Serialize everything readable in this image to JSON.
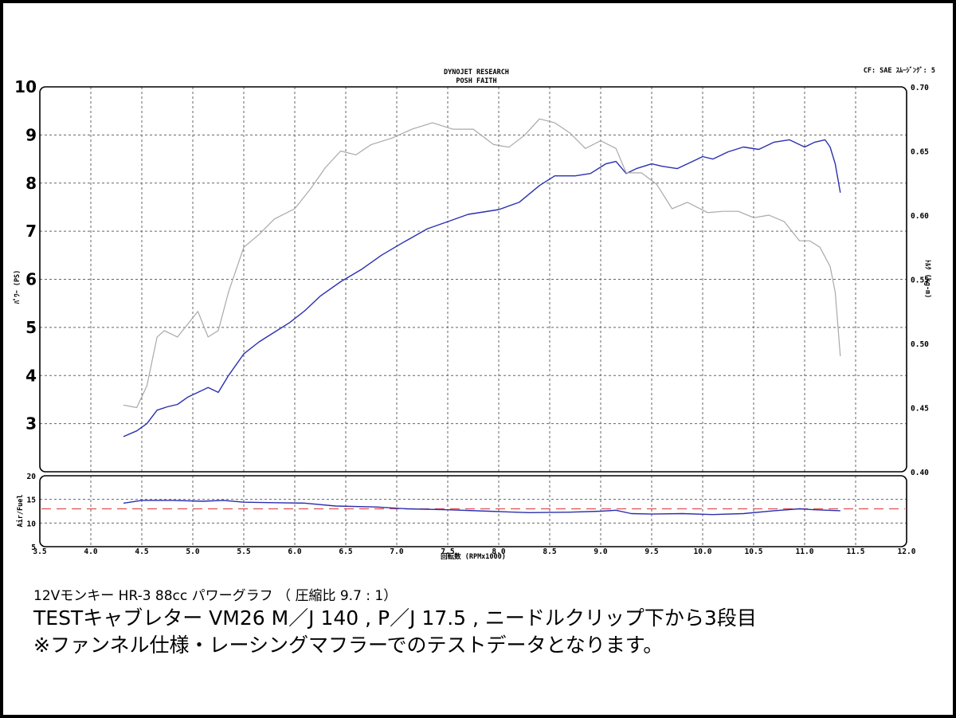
{
  "header": {
    "title_line1": "DYNOJET  RESEARCH",
    "title_line2": "POSH FAITH",
    "cf_label": "CF: SAE  ｽﾑｰｼﾞﾝｸﾞ: 5"
  },
  "chart_data": [
    {
      "type": "line",
      "ylabel_left": "ﾊﾟﾜｰ (PS)",
      "ylabel_right": "ﾄﾙｸ (kg-m)",
      "xlim": [
        3.5,
        12.0
      ],
      "ylim_left": [
        2,
        10
      ],
      "ylim_right": [
        0.4,
        0.7
      ],
      "x_ticks": [
        "3.5",
        "4.0",
        "4.5",
        "5.0",
        "5.5",
        "6.0",
        "6.5",
        "7.0",
        "7.5",
        "8.0",
        "8.5",
        "9.0",
        "9.5",
        "10.0",
        "10.5",
        "11.0",
        "11.5",
        "12.0"
      ],
      "y_ticks_left": [
        "10",
        "9",
        "8",
        "7",
        "6",
        "5",
        "4",
        "3"
      ],
      "y_ticks_right": [
        "0.70",
        "0.65",
        "0.60",
        "0.55",
        "0.50",
        "0.45",
        "0.40"
      ],
      "grid": true,
      "colors": {
        "power": "#2b2fb0",
        "torque": "#a9a9a9",
        "grid": "#666666"
      },
      "series": [
        {
          "name": "",
          "key": "power",
          "axis": "left",
          "x": [
            4.32,
            4.45,
            4.55,
            4.65,
            4.75,
            4.85,
            4.95,
            5.05,
            5.15,
            5.25,
            5.35,
            5.5,
            5.65,
            5.8,
            5.95,
            6.1,
            6.25,
            6.45,
            6.65,
            6.85,
            7.05,
            7.3,
            7.5,
            7.7,
            7.85,
            8.0,
            8.2,
            8.4,
            8.55,
            8.75,
            8.9,
            9.05,
            9.15,
            9.25,
            9.35,
            9.5,
            9.6,
            9.75,
            9.9,
            10.0,
            10.1,
            10.25,
            10.4,
            10.55,
            10.7,
            10.85,
            11.0,
            11.1,
            11.2,
            11.25,
            11.3,
            11.35
          ],
          "y": [
            2.73,
            2.85,
            3.0,
            3.28,
            3.35,
            3.4,
            3.55,
            3.65,
            3.75,
            3.65,
            4.0,
            4.45,
            4.7,
            4.9,
            5.1,
            5.35,
            5.65,
            5.95,
            6.2,
            6.5,
            6.75,
            7.05,
            7.2,
            7.35,
            7.4,
            7.45,
            7.6,
            7.95,
            8.15,
            8.15,
            8.2,
            8.4,
            8.45,
            8.2,
            8.3,
            8.4,
            8.35,
            8.3,
            8.45,
            8.55,
            8.5,
            8.65,
            8.75,
            8.7,
            8.85,
            8.9,
            8.75,
            8.85,
            8.9,
            8.75,
            8.4,
            7.8
          ]
        },
        {
          "name": "",
          "key": "torque",
          "axis": "right",
          "x": [
            4.32,
            4.45,
            4.55,
            4.65,
            4.72,
            4.85,
            4.95,
            5.05,
            5.15,
            5.25,
            5.35,
            5.5,
            5.65,
            5.8,
            6.0,
            6.15,
            6.3,
            6.45,
            6.6,
            6.75,
            6.95,
            7.15,
            7.35,
            7.55,
            7.75,
            7.95,
            8.1,
            8.25,
            8.4,
            8.55,
            8.7,
            8.85,
            9.0,
            9.15,
            9.25,
            9.4,
            9.55,
            9.7,
            9.85,
            10.05,
            10.2,
            10.35,
            10.5,
            10.65,
            10.8,
            10.95,
            11.05,
            11.15,
            11.25,
            11.3,
            11.35
          ],
          "y": [
            0.452,
            0.45,
            0.467,
            0.505,
            0.51,
            0.505,
            0.515,
            0.525,
            0.505,
            0.51,
            0.54,
            0.575,
            0.585,
            0.597,
            0.605,
            0.62,
            0.637,
            0.65,
            0.647,
            0.655,
            0.66,
            0.667,
            0.672,
            0.667,
            0.667,
            0.655,
            0.653,
            0.662,
            0.675,
            0.672,
            0.664,
            0.652,
            0.658,
            0.652,
            0.633,
            0.633,
            0.624,
            0.605,
            0.61,
            0.602,
            0.603,
            0.603,
            0.598,
            0.6,
            0.595,
            0.58,
            0.58,
            0.575,
            0.56,
            0.54,
            0.49
          ]
        }
      ]
    },
    {
      "type": "line",
      "ylabel": "Air/Fuel",
      "xlabel": "回転数 (RPMx1000)",
      "xlim": [
        3.5,
        12.0
      ],
      "ylim": [
        5,
        20
      ],
      "x_ticks": [
        "3.5",
        "4.0",
        "4.5",
        "5.0",
        "5.5",
        "6.0",
        "6.5",
        "7.0",
        "7.5",
        "8.0",
        "8.5",
        "9.0",
        "9.5",
        "10.0",
        "10.5",
        "11.0",
        "11.5",
        "12.0"
      ],
      "y_ticks": [
        "20",
        "15",
        "10",
        "5"
      ],
      "grid": true,
      "reference_line": {
        "y": 13.0,
        "color": "#e05050",
        "style": "dashed"
      },
      "colors": {
        "afr": "#2b2fb0"
      },
      "series": [
        {
          "name": "",
          "key": "afr",
          "x": [
            4.32,
            4.5,
            4.8,
            5.1,
            5.3,
            5.5,
            5.8,
            6.1,
            6.4,
            6.8,
            7.1,
            7.5,
            7.9,
            8.3,
            8.7,
            9.0,
            9.15,
            9.3,
            9.5,
            9.8,
            10.1,
            10.4,
            10.7,
            10.95,
            11.1,
            11.35
          ],
          "y": [
            14.2,
            14.8,
            14.8,
            14.6,
            14.8,
            14.4,
            14.3,
            14.2,
            13.6,
            13.4,
            13.0,
            12.8,
            12.5,
            12.2,
            12.3,
            12.5,
            12.7,
            12.0,
            11.9,
            12.0,
            11.8,
            12.0,
            12.6,
            13.0,
            12.8,
            12.6
          ]
        }
      ]
    }
  ],
  "caption": {
    "line1": "12Vモンキー HR-3 88cc パワーグラフ （ 圧縮比  9.7 : 1）",
    "line2": "TESTキャブレター  VM26  M／J 140 , P／J 17.5 , ニードルクリップ下から3段目",
    "line3": "※ファンネル仕様・レーシングマフラーでのテストデータとなります。"
  }
}
